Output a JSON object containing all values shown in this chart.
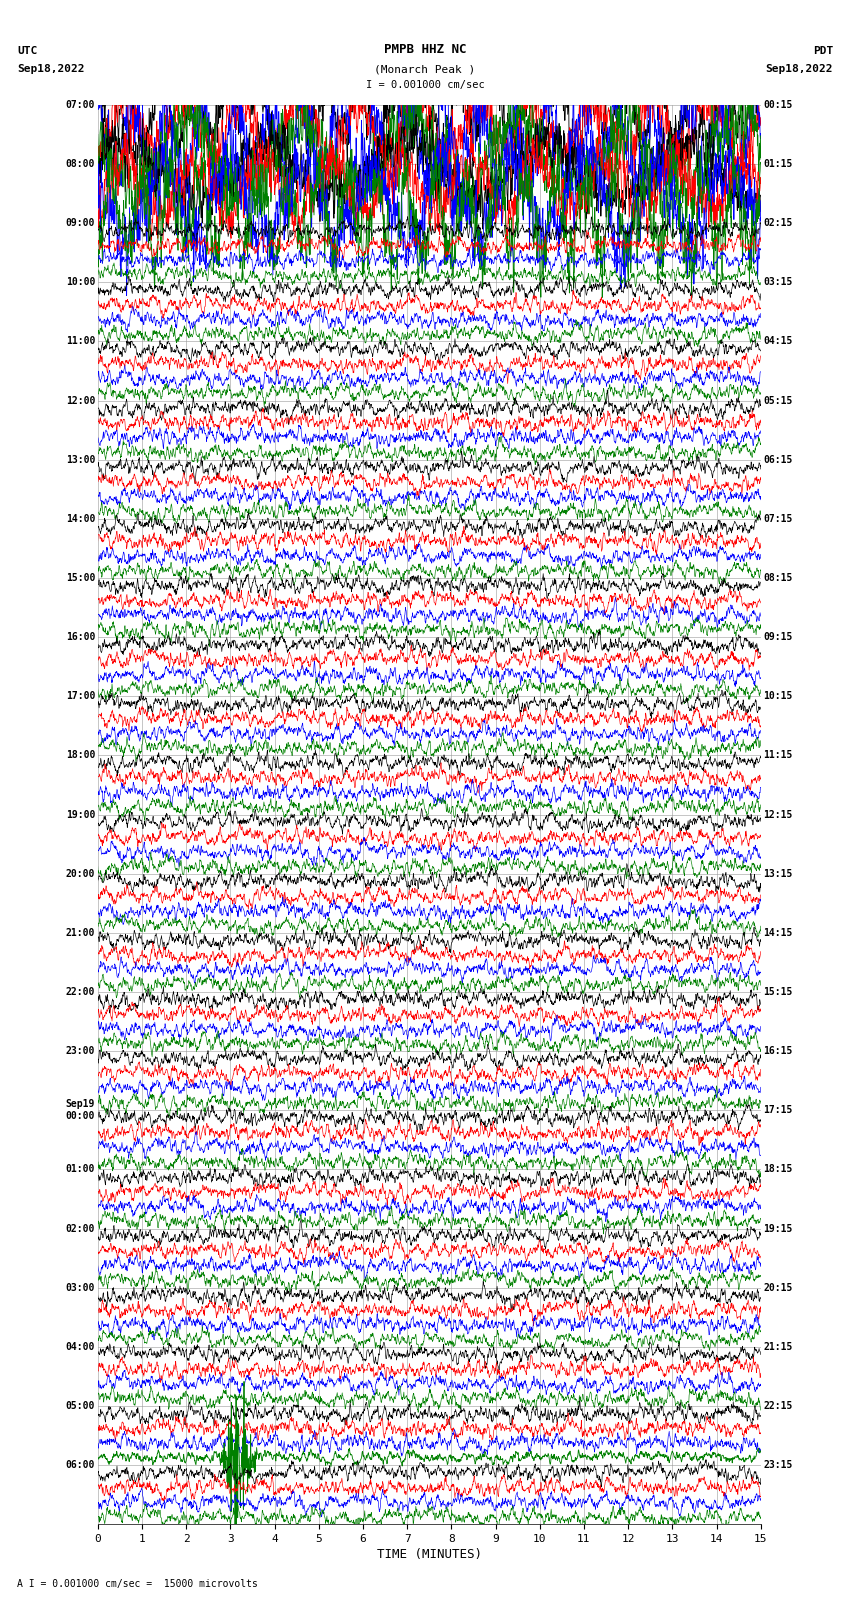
{
  "title_line1": "PMPB HHZ NC",
  "title_line2": "(Monarch Peak )",
  "scale_label": "I = 0.001000 cm/sec",
  "footer_label": "A I = 0.001000 cm/sec =  15000 microvolts",
  "xlabel": "TIME (MINUTES)",
  "xticks": [
    0,
    1,
    2,
    3,
    4,
    5,
    6,
    7,
    8,
    9,
    10,
    11,
    12,
    13,
    14,
    15
  ],
  "background_color": "#ffffff",
  "trace_colors": [
    "black",
    "red",
    "blue",
    "green"
  ],
  "num_hour_rows": 24,
  "left_labels": [
    "07:00",
    "08:00",
    "09:00",
    "10:00",
    "11:00",
    "12:00",
    "13:00",
    "14:00",
    "15:00",
    "16:00",
    "17:00",
    "18:00",
    "19:00",
    "20:00",
    "21:00",
    "22:00",
    "23:00",
    "Sep19\n00:00",
    "01:00",
    "02:00",
    "03:00",
    "04:00",
    "05:00",
    "06:00"
  ],
  "right_labels": [
    "00:15",
    "01:15",
    "02:15",
    "03:15",
    "04:15",
    "05:15",
    "06:15",
    "07:15",
    "08:15",
    "09:15",
    "10:15",
    "11:15",
    "12:15",
    "13:15",
    "14:15",
    "15:15",
    "16:15",
    "17:15",
    "18:15",
    "19:15",
    "20:15",
    "21:15",
    "22:15",
    "23:15"
  ],
  "grid_color": "#999999",
  "burst_hour_rows": [
    0,
    1
  ],
  "event_hour_row": 22,
  "event_color": "green",
  "n_points": 2000
}
